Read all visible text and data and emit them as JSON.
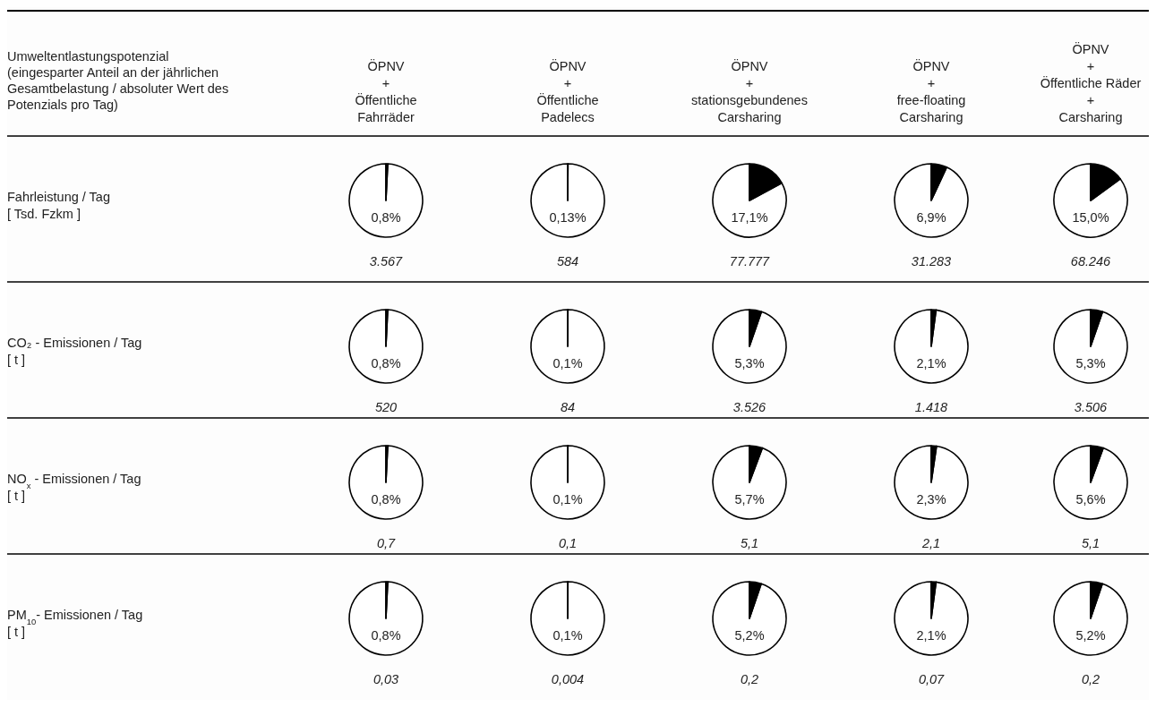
{
  "chart_data": [
    {
      "type": "other",
      "annotations": [
        "Umweltentlastungspotenzial\n(eingesparter Anteil an der jährlichen\nGesamtbelastung / absoluter Wert des\nPotenzials pro Tag)",
        "ÖPNV\n+\nÖffentliche\nFahrräder",
        "ÖPNV\n+\nÖffentliche\nPadelecs",
        "ÖPNV\n+\nstationsgebundenes\nCarsharing",
        "ÖPNV\n+\nfree-floating\nCarsharing",
        "ÖPNV\n+\nÖffentliche Räder\n+\nCarsharing",
        "Fahrleistung / Tag\n[ Tsd. Fzkm ]",
        "CO₂ - Emissionen / Tag\n[ t ]",
        "NO$_{x}$ - Emissionen / Tag\n[ t ]",
        "PM$_{10}$- Emissionen / Tag\n[ t ]"
      ]
    },
    {
      "type": "pie",
      "categories": [
        null,
        null
      ],
      "values": [
        0.8,
        99.2
      ],
      "colors": [
        "#000000",
        "#ffffff"
      ],
      "annotations": [
        "0,8%",
        "3.567"
      ]
    },
    {
      "type": "pie",
      "categories": [
        null,
        null
      ],
      "values": [
        0.13,
        99.87
      ],
      "colors": [
        "#000000",
        "#ffffff"
      ],
      "annotations": [
        "0,13%",
        "584"
      ]
    },
    {
      "type": "pie",
      "categories": [
        null,
        null
      ],
      "values": [
        17.1,
        82.9
      ],
      "colors": [
        "#000000",
        "#ffffff"
      ],
      "annotations": [
        "17,1%",
        "77.777"
      ]
    },
    {
      "type": "pie",
      "categories": [
        null,
        null
      ],
      "values": [
        6.9,
        93.1
      ],
      "colors": [
        "#000000",
        "#ffffff"
      ],
      "annotations": [
        "6,9%",
        "31.283"
      ]
    },
    {
      "type": "pie",
      "categories": [
        null,
        null
      ],
      "values": [
        15.0,
        85.0
      ],
      "colors": [
        "#000000",
        "#ffffff"
      ],
      "annotations": [
        "15,0%",
        "68.246"
      ]
    },
    {
      "type": "pie",
      "categories": [
        null,
        null
      ],
      "values": [
        0.8,
        99.2
      ],
      "colors": [
        "#000000",
        "#ffffff"
      ],
      "annotations": [
        "0,8%",
        "520"
      ]
    },
    {
      "type": "pie",
      "categories": [
        null,
        null
      ],
      "values": [
        0.1,
        99.9
      ],
      "colors": [
        "#000000",
        "#ffffff"
      ],
      "annotations": [
        "0,1%",
        "84"
      ]
    },
    {
      "type": "pie",
      "categories": [
        null,
        null
      ],
      "values": [
        5.3,
        94.7
      ],
      "colors": [
        "#000000",
        "#ffffff"
      ],
      "annotations": [
        "5,3%",
        "3.526"
      ]
    },
    {
      "type": "pie",
      "categories": [
        null,
        null
      ],
      "values": [
        2.1,
        97.9
      ],
      "colors": [
        "#000000",
        "#ffffff"
      ],
      "annotations": [
        "2,1%",
        "1.418"
      ]
    },
    {
      "type": "pie",
      "categories": [
        null,
        null
      ],
      "values": [
        5.3,
        94.7
      ],
      "colors": [
        "#000000",
        "#ffffff"
      ],
      "annotations": [
        "5,3%",
        "3.506"
      ]
    },
    {
      "type": "pie",
      "categories": [
        null,
        null
      ],
      "values": [
        0.8,
        99.2
      ],
      "colors": [
        "#000000",
        "#ffffff"
      ],
      "annotations": [
        "0,8%",
        "0,7"
      ]
    },
    {
      "type": "pie",
      "categories": [
        null,
        null
      ],
      "values": [
        0.1,
        99.9
      ],
      "colors": [
        "#000000",
        "#ffffff"
      ],
      "annotations": [
        "0,1%",
        "0,1"
      ]
    },
    {
      "type": "pie",
      "categories": [
        null,
        null
      ],
      "values": [
        5.7,
        94.3
      ],
      "colors": [
        "#000000",
        "#ffffff"
      ],
      "annotations": [
        "5,7%",
        "5,1"
      ]
    },
    {
      "type": "pie",
      "categories": [
        null,
        null
      ],
      "values": [
        2.3,
        97.7
      ],
      "colors": [
        "#000000",
        "#ffffff"
      ],
      "annotations": [
        "2,3%",
        "2,1"
      ]
    },
    {
      "type": "pie",
      "categories": [
        null,
        null
      ],
      "values": [
        5.6,
        94.4
      ],
      "colors": [
        "#000000",
        "#ffffff"
      ],
      "annotations": [
        "5,6%",
        "5,1"
      ]
    },
    {
      "type": "pie",
      "categories": [
        null,
        null
      ],
      "values": [
        0.8,
        99.2
      ],
      "colors": [
        "#000000",
        "#ffffff"
      ],
      "annotations": [
        "0,8%",
        "0,03"
      ]
    },
    {
      "type": "pie",
      "categories": [
        null,
        null
      ],
      "values": [
        0.1,
        99.9
      ],
      "colors": [
        "#000000",
        "#ffffff"
      ],
      "annotations": [
        "0,1%",
        "0,004"
      ]
    },
    {
      "type": "pie",
      "categories": [
        null,
        null
      ],
      "values": [
        5.2,
        94.8
      ],
      "colors": [
        "#000000",
        "#ffffff"
      ],
      "annotations": [
        "5,2%",
        "0,2"
      ]
    },
    {
      "type": "pie",
      "categories": [
        null,
        null
      ],
      "values": [
        2.1,
        97.9
      ],
      "colors": [
        "#000000",
        "#ffffff"
      ],
      "annotations": [
        "2,1%",
        "0,07"
      ]
    },
    {
      "type": "pie",
      "categories": [
        null,
        null
      ],
      "values": [
        5.2,
        94.8
      ],
      "colors": [
        "#000000",
        "#ffffff"
      ],
      "annotations": [
        "5,2%",
        "0,2"
      ]
    }
  ]
}
